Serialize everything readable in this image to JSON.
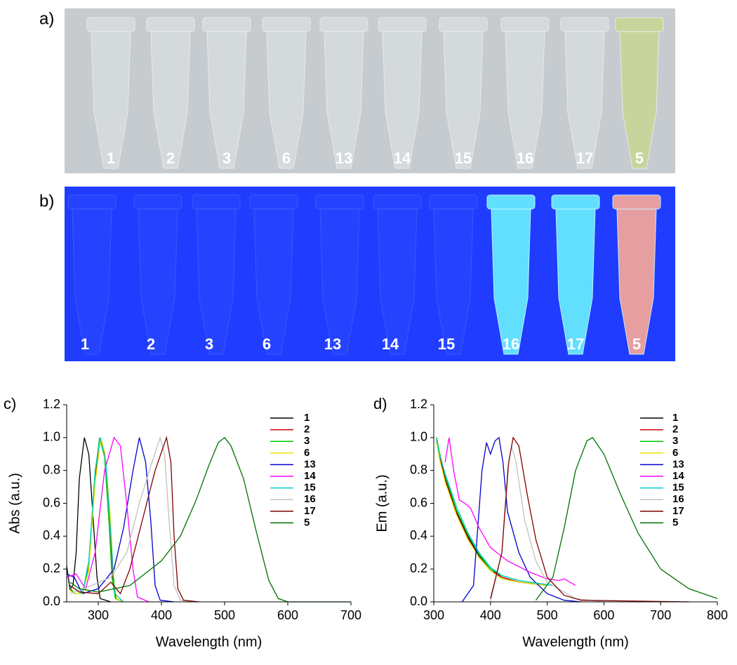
{
  "photos": [
    {
      "panel_label": "a)",
      "tube_labels": [
        "1",
        "2",
        "3",
        "6",
        "13",
        "14",
        "15",
        "16",
        "17",
        "5"
      ]
    },
    {
      "panel_label": "b)",
      "tube_labels": [
        "1",
        "2",
        "3",
        "6",
        "13",
        "14",
        "15",
        "16",
        "17",
        "5"
      ]
    }
  ],
  "chart_data": [
    {
      "type": "line",
      "panel_label": "c)",
      "xlabel": "Wavelength (nm)",
      "ylabel": "Abs (a.u.)",
      "xlim": [
        250,
        700
      ],
      "xticks": [
        300,
        400,
        500,
        600,
        700
      ],
      "ylim": [
        0,
        1.2
      ],
      "yticks": [
        {
          "value": 0,
          "label": "0.0"
        },
        0.2,
        0.4,
        0.6,
        0.8,
        {
          "value": 1,
          "label": "1.0"
        },
        1.2
      ],
      "series": [
        {
          "name": "1",
          "color": "#000000",
          "x": [
            250,
            255,
            260,
            265,
            270,
            278,
            285,
            292,
            298,
            303,
            320
          ],
          "values": [
            0.22,
            0.08,
            0.1,
            0.3,
            0.75,
            1.0,
            0.9,
            0.5,
            0.15,
            0.02,
            0.0
          ]
        },
        {
          "name": "2",
          "color": "#cc0000",
          "x": [
            255,
            262,
            275,
            285,
            295,
            303,
            310,
            318,
            323,
            328,
            340
          ],
          "values": [
            0.08,
            0.05,
            0.05,
            0.2,
            0.75,
            1.0,
            0.9,
            0.5,
            0.15,
            0.02,
            0.0
          ]
        },
        {
          "name": "3",
          "color": "#00cc00",
          "x": [
            255,
            262,
            275,
            285,
            295,
            302,
            310,
            317,
            322,
            327,
            340
          ],
          "values": [
            0.09,
            0.05,
            0.05,
            0.22,
            0.78,
            1.0,
            0.88,
            0.48,
            0.14,
            0.02,
            0.0
          ]
        },
        {
          "name": "6",
          "color": "#e6e600",
          "x": [
            255,
            262,
            275,
            285,
            295,
            304,
            311,
            319,
            324,
            329,
            340
          ],
          "values": [
            0.07,
            0.05,
            0.05,
            0.19,
            0.72,
            1.0,
            0.9,
            0.52,
            0.16,
            0.02,
            0.0
          ]
        },
        {
          "name": "13",
          "color": "#0000cc",
          "x": [
            250,
            262,
            275,
            300,
            325,
            340,
            355,
            365,
            375,
            383,
            390,
            398,
            420
          ],
          "values": [
            0.17,
            0.15,
            0.05,
            0.08,
            0.2,
            0.45,
            0.8,
            1.0,
            0.85,
            0.5,
            0.1,
            0.01,
            0.0
          ]
        },
        {
          "name": "14",
          "color": "#ff00ff",
          "x": [
            250,
            265,
            280,
            295,
            310,
            325,
            335,
            345,
            355,
            362,
            380
          ],
          "values": [
            0.15,
            0.17,
            0.08,
            0.3,
            0.8,
            1.0,
            0.95,
            0.6,
            0.2,
            0.03,
            0.0
          ]
        },
        {
          "name": "15",
          "color": "#00cccc",
          "x": [
            255,
            275,
            285,
            295,
            303,
            312,
            320,
            326,
            340
          ],
          "values": [
            0.1,
            0.05,
            0.25,
            0.8,
            1.0,
            0.85,
            0.4,
            0.05,
            0.0
          ]
        },
        {
          "name": "16",
          "color": "#c0c0c0",
          "x": [
            255,
            290,
            320,
            345,
            365,
            385,
            398,
            405,
            412,
            420,
            430,
            450
          ],
          "values": [
            0.05,
            0.1,
            0.15,
            0.3,
            0.6,
            0.85,
            1.0,
            0.9,
            0.5,
            0.1,
            0.01,
            0.0
          ]
        },
        {
          "name": "17",
          "color": "#800000",
          "x": [
            255,
            270,
            300,
            320,
            335,
            350,
            370,
            390,
            408,
            415,
            420,
            426,
            435,
            460
          ],
          "values": [
            0.1,
            0.06,
            0.05,
            0.12,
            0.05,
            0.2,
            0.5,
            0.8,
            1.0,
            0.85,
            0.4,
            0.08,
            0.01,
            0.0
          ]
        },
        {
          "name": "5",
          "color": "#007000",
          "x": [
            255,
            270,
            300,
            350,
            400,
            430,
            455,
            475,
            490,
            500,
            510,
            530,
            550,
            570,
            585,
            600,
            700
          ],
          "values": [
            0.12,
            0.08,
            0.06,
            0.1,
            0.25,
            0.4,
            0.62,
            0.83,
            0.97,
            1.0,
            0.95,
            0.75,
            0.43,
            0.13,
            0.02,
            0.0,
            0.0
          ]
        }
      ]
    },
    {
      "type": "line",
      "panel_label": "d)",
      "xlabel": "Wavelength (nm)",
      "ylabel": "Em (a.u.)",
      "xlim": [
        300,
        800
      ],
      "xticks": [
        300,
        400,
        500,
        600,
        700,
        800
      ],
      "ylim": [
        0,
        1.2
      ],
      "yticks": [
        {
          "value": 0,
          "label": "0.0"
        },
        0.2,
        0.4,
        0.6,
        0.8,
        {
          "value": 1,
          "label": "1.0"
        },
        1.2
      ],
      "series": [
        {
          "name": "1",
          "color": "#000000",
          "x": [
            305,
            310,
            320,
            340,
            360,
            380,
            400,
            420,
            450,
            500
          ],
          "values": [
            1.0,
            0.9,
            0.75,
            0.55,
            0.4,
            0.28,
            0.2,
            0.15,
            0.12,
            0.1
          ]
        },
        {
          "name": "2",
          "color": "#cc0000",
          "x": [
            305,
            310,
            320,
            340,
            360,
            380,
            400,
            420,
            450,
            500
          ],
          "values": [
            0.98,
            0.88,
            0.74,
            0.54,
            0.39,
            0.27,
            0.19,
            0.15,
            0.12,
            0.1
          ]
        },
        {
          "name": "3",
          "color": "#00cc00",
          "x": [
            305,
            310,
            320,
            340,
            360,
            380,
            400,
            420,
            450,
            510
          ],
          "values": [
            1.0,
            0.91,
            0.77,
            0.56,
            0.41,
            0.29,
            0.2,
            0.16,
            0.13,
            0.1
          ]
        },
        {
          "name": "6",
          "color": "#e6e600",
          "x": [
            305,
            310,
            320,
            340,
            360,
            380,
            400,
            420,
            450,
            500
          ],
          "values": [
            0.97,
            0.87,
            0.73,
            0.53,
            0.38,
            0.27,
            0.19,
            0.14,
            0.12,
            0.1
          ]
        },
        {
          "name": "13",
          "color": "#0000cc",
          "x": [
            350,
            370,
            385,
            393,
            400,
            408,
            415,
            422,
            430,
            450,
            470,
            500,
            530,
            560
          ],
          "values": [
            0.0,
            0.1,
            0.8,
            0.97,
            0.9,
            0.98,
            1.0,
            0.85,
            0.55,
            0.3,
            0.15,
            0.05,
            0.01,
            0.0
          ]
        },
        {
          "name": "14",
          "color": "#ff00ff",
          "x": [
            320,
            327,
            335,
            345,
            355,
            365,
            380,
            400,
            430,
            470,
            500,
            520,
            530,
            550
          ],
          "values": [
            0.85,
            1.0,
            0.8,
            0.62,
            0.6,
            0.57,
            0.45,
            0.33,
            0.25,
            0.18,
            0.14,
            0.13,
            0.14,
            0.1
          ]
        },
        {
          "name": "15",
          "color": "#00cccc",
          "x": [
            305,
            310,
            320,
            340,
            360,
            380,
            400,
            420,
            450,
            510
          ],
          "values": [
            0.99,
            0.9,
            0.78,
            0.58,
            0.42,
            0.3,
            0.21,
            0.16,
            0.13,
            0.1
          ]
        },
        {
          "name": "16",
          "color": "#c0c0c0",
          "x": [
            400,
            420,
            430,
            437,
            445,
            460,
            480,
            500,
            550,
            600
          ],
          "values": [
            0.0,
            0.3,
            0.8,
            0.95,
            0.85,
            0.5,
            0.25,
            0.12,
            0.02,
            0.0
          ]
        },
        {
          "name": "17",
          "color": "#800000",
          "x": [
            400,
            420,
            432,
            440,
            450,
            465,
            480,
            500,
            530,
            560,
            750
          ],
          "values": [
            0.02,
            0.3,
            0.85,
            1.0,
            0.95,
            0.65,
            0.38,
            0.15,
            0.04,
            0.01,
            0.0
          ]
        },
        {
          "name": "5",
          "color": "#007000",
          "x": [
            480,
            510,
            530,
            550,
            570,
            580,
            600,
            630,
            660,
            700,
            750,
            800
          ],
          "values": [
            0.01,
            0.15,
            0.45,
            0.8,
            0.98,
            1.0,
            0.9,
            0.65,
            0.42,
            0.2,
            0.08,
            0.02
          ]
        }
      ]
    }
  ]
}
